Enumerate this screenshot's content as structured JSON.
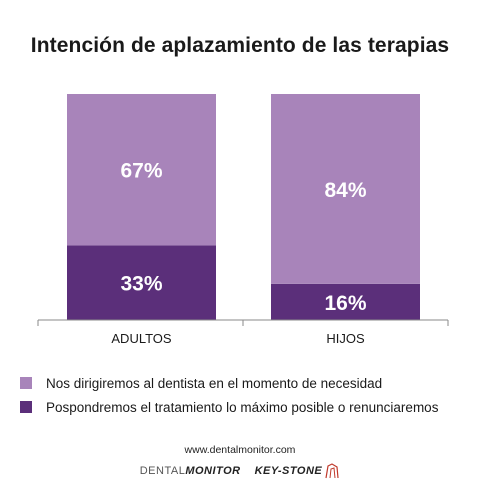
{
  "chart_data": {
    "type": "bar",
    "stacked": true,
    "title": "Intención de aplazamiento de las terapias",
    "categories": [
      "ADULTOS",
      "HIJOS"
    ],
    "ylim": [
      0,
      100
    ],
    "grid": false,
    "legend_position": "bottom",
    "series": [
      {
        "name": "Pospondremos el tratamiento lo máximo posible o renunciaremos",
        "values": [
          33,
          16
        ],
        "labels": [
          "33%",
          "16%"
        ],
        "color": "#5b2f7a"
      },
      {
        "name": "Nos dirigiremos al dentista en el momento de necesidad",
        "values": [
          67,
          84
        ],
        "labels": [
          "67%",
          "84%"
        ],
        "color": "#a884ba"
      }
    ]
  },
  "footer": {
    "website": "www.dentalmonitor.com",
    "logo_dental_a": "DENTAL",
    "logo_dental_b": "MONITOR",
    "logo_keystone": "KEY-STONE"
  }
}
